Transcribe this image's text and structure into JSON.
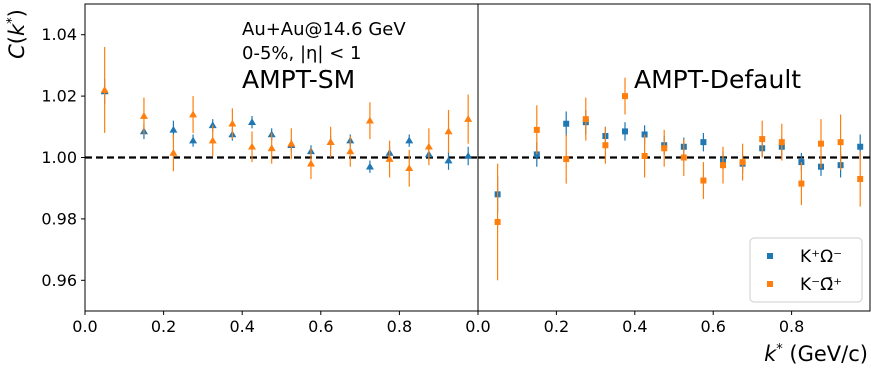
{
  "chart_data": {
    "type": "scatter",
    "ylabel": "C(k*)",
    "xlabel": "k* (GeV/c)",
    "ylim": [
      0.95,
      1.05
    ],
    "yticks": [
      "0.96",
      "0.98",
      "1.00",
      "1.02",
      "1.04"
    ],
    "xticks": [
      "0.0",
      "0.2",
      "0.4",
      "0.6",
      "0.8"
    ],
    "reference_line": 1.0,
    "colors": {
      "blue": "#1f77b4",
      "orange": "#ff7f0e"
    },
    "panels": [
      {
        "id": "left",
        "xlim": [
          0.0,
          1.0
        ],
        "annotations": [
          "Au+Au@14.6 GeV",
          "0-5%, |η| < 1",
          "AMPT-SM"
        ],
        "marker": "triangle",
        "series": [
          {
            "color": "blue",
            "x": [
              0.05,
              0.15,
              0.225,
              0.275,
              0.325,
              0.375,
              0.425,
              0.475,
              0.525,
              0.575,
              0.625,
              0.675,
              0.725,
              0.775,
              0.825,
              0.875,
              0.925,
              0.975
            ],
            "y": [
              1.0215,
              1.0085,
              1.009,
              1.0055,
              1.0105,
              1.0075,
              1.0115,
              1.0075,
              1.004,
              1.002,
              1.005,
              1.0055,
              0.997,
              1.0015,
              1.0055,
              1.001,
              0.999,
              1.0005
            ],
            "err": [
              0.004,
              0.0025,
              0.003,
              0.002,
              0.002,
              0.002,
              0.002,
              0.002,
              0.002,
              0.002,
              0.002,
              0.002,
              0.002,
              0.002,
              0.002,
              0.002,
              0.003,
              0.003
            ]
          },
          {
            "color": "orange",
            "x": [
              0.05,
              0.15,
              0.225,
              0.275,
              0.325,
              0.375,
              0.425,
              0.475,
              0.525,
              0.575,
              0.625,
              0.675,
              0.725,
              0.775,
              0.825,
              0.875,
              0.925,
              0.975
            ],
            "y": [
              1.022,
              1.0135,
              1.0015,
              1.014,
              1.0055,
              1.011,
              1.0035,
              1.003,
              1.0045,
              0.998,
              1.005,
              1.002,
              1.012,
              0.9995,
              0.9965,
              1.0035,
              1.0085,
              1.0125
            ],
            "err": [
              0.014,
              0.006,
              0.006,
              0.006,
              0.005,
              0.005,
              0.005,
              0.005,
              0.005,
              0.005,
              0.005,
              0.005,
              0.006,
              0.006,
              0.006,
              0.006,
              0.007,
              0.008
            ]
          }
        ]
      },
      {
        "id": "right",
        "xlim": [
          0.0,
          1.0
        ],
        "annotations": [
          "AMPT-Default"
        ],
        "marker": "square",
        "legend_position": "lower-right",
        "series": [
          {
            "name": "K⁺Ω⁻",
            "color": "blue",
            "x": [
              0.05,
              0.15,
              0.225,
              0.275,
              0.325,
              0.375,
              0.425,
              0.475,
              0.525,
              0.575,
              0.625,
              0.675,
              0.725,
              0.775,
              0.825,
              0.875,
              0.925,
              0.975
            ],
            "y": [
              0.988,
              1.001,
              1.011,
              1.0115,
              1.007,
              1.0085,
              1.0075,
              1.004,
              1.0035,
              1.005,
              0.999,
              0.998,
              1.003,
              1.0035,
              0.9985,
              0.997,
              0.9975,
              1.0035
            ],
            "err": [
              0.006,
              0.004,
              0.004,
              0.004,
              0.003,
              0.003,
              0.003,
              0.003,
              0.003,
              0.003,
              0.003,
              0.003,
              0.003,
              0.003,
              0.003,
              0.003,
              0.004,
              0.004
            ]
          },
          {
            "name": "K⁻Ω̄⁺",
            "color": "orange",
            "x": [
              0.05,
              0.15,
              0.225,
              0.275,
              0.325,
              0.375,
              0.425,
              0.475,
              0.525,
              0.575,
              0.625,
              0.675,
              0.725,
              0.775,
              0.825,
              0.875,
              0.925,
              0.975
            ],
            "y": [
              0.979,
              1.009,
              0.9995,
              1.0125,
              1.004,
              1.02,
              1.0005,
              1.003,
              1.0,
              0.9925,
              0.9975,
              0.9985,
              1.006,
              1.005,
              0.9915,
              1.0045,
              1.005,
              0.993
            ],
            "err": [
              0.019,
              0.008,
              0.008,
              0.007,
              0.006,
              0.006,
              0.007,
              0.006,
              0.006,
              0.006,
              0.006,
              0.006,
              0.006,
              0.006,
              0.007,
              0.008,
              0.009,
              0.009
            ]
          }
        ]
      }
    ]
  }
}
